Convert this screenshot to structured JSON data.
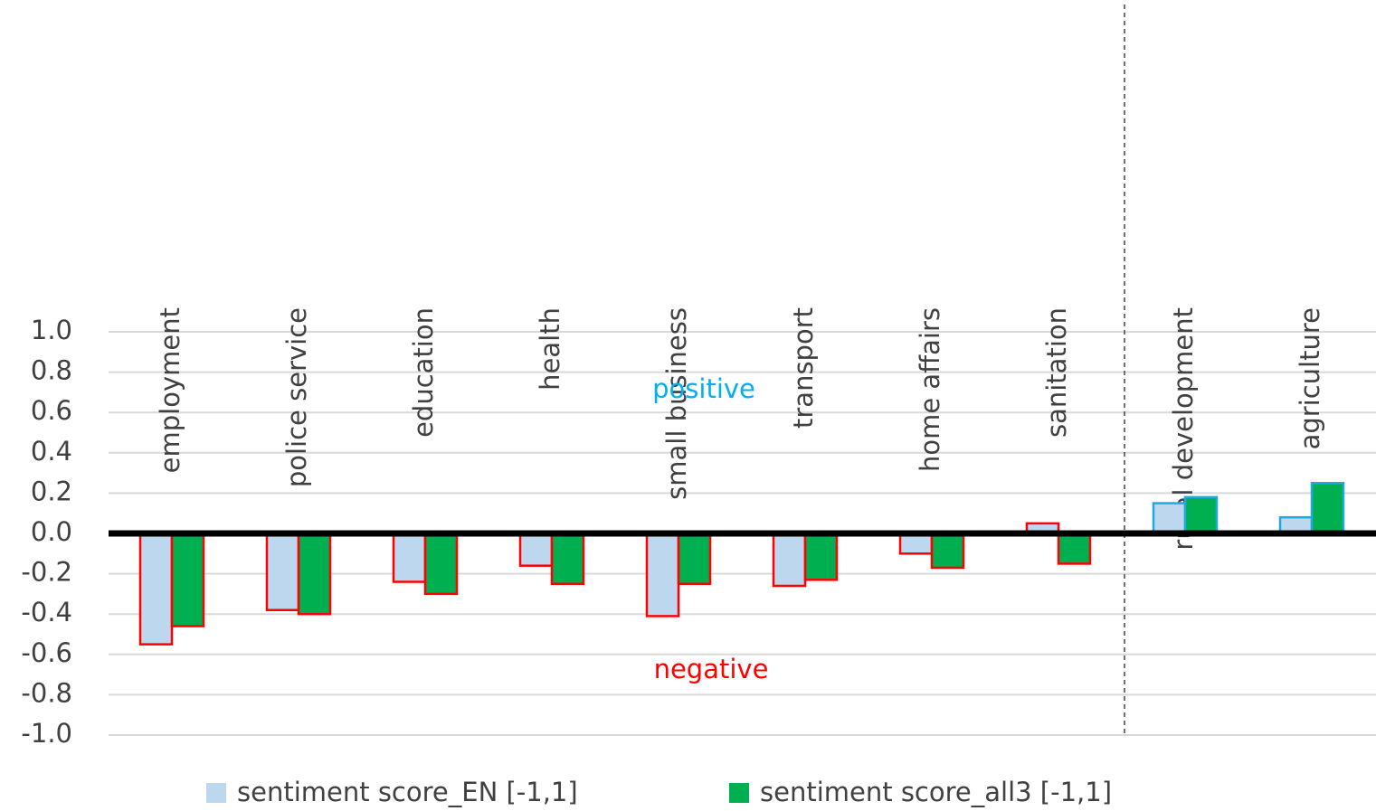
{
  "chart_data": {
    "type": "bar",
    "categories": [
      "employment",
      "police service",
      "education",
      "health",
      "small business",
      "transport",
      "home affairs",
      "sanitation",
      "rural development",
      "agriculture"
    ],
    "series": [
      {
        "name": "sentiment score_EN [-1,1]",
        "color": "#bdd7ee",
        "values": [
          -0.55,
          -0.38,
          -0.24,
          -0.16,
          -0.41,
          -0.26,
          -0.1,
          0.05,
          0.15,
          0.08
        ]
      },
      {
        "name": "sentiment score_all3 [-1,1]",
        "color": "#00b050",
        "values": [
          -0.46,
          -0.4,
          -0.3,
          -0.25,
          -0.25,
          -0.23,
          -0.17,
          -0.15,
          0.18,
          0.25
        ]
      }
    ],
    "outline_colors": [
      "#ff0000",
      "#ff0000",
      "#ff0000",
      "#ff0000",
      "#ff0000",
      "#ff0000",
      "#ff0000",
      "#ff0000",
      "#1fa9e0",
      "#1fa9e0"
    ],
    "annotations": [
      {
        "text": "positive",
        "color": "#00b0f0"
      },
      {
        "text": "negative",
        "color": "#ff0000"
      }
    ],
    "ylim": [
      -1,
      1
    ],
    "yticks": [
      {
        "value": -1,
        "label": "-1.0"
      },
      -0.8,
      -0.6,
      -0.4,
      -0.2,
      {
        "value": 0,
        "label": "0.0"
      },
      0.2,
      0.4,
      0.6,
      0.8,
      {
        "value": 1,
        "label": "1.0"
      }
    ],
    "grid": true,
    "legend": "bottom"
  }
}
